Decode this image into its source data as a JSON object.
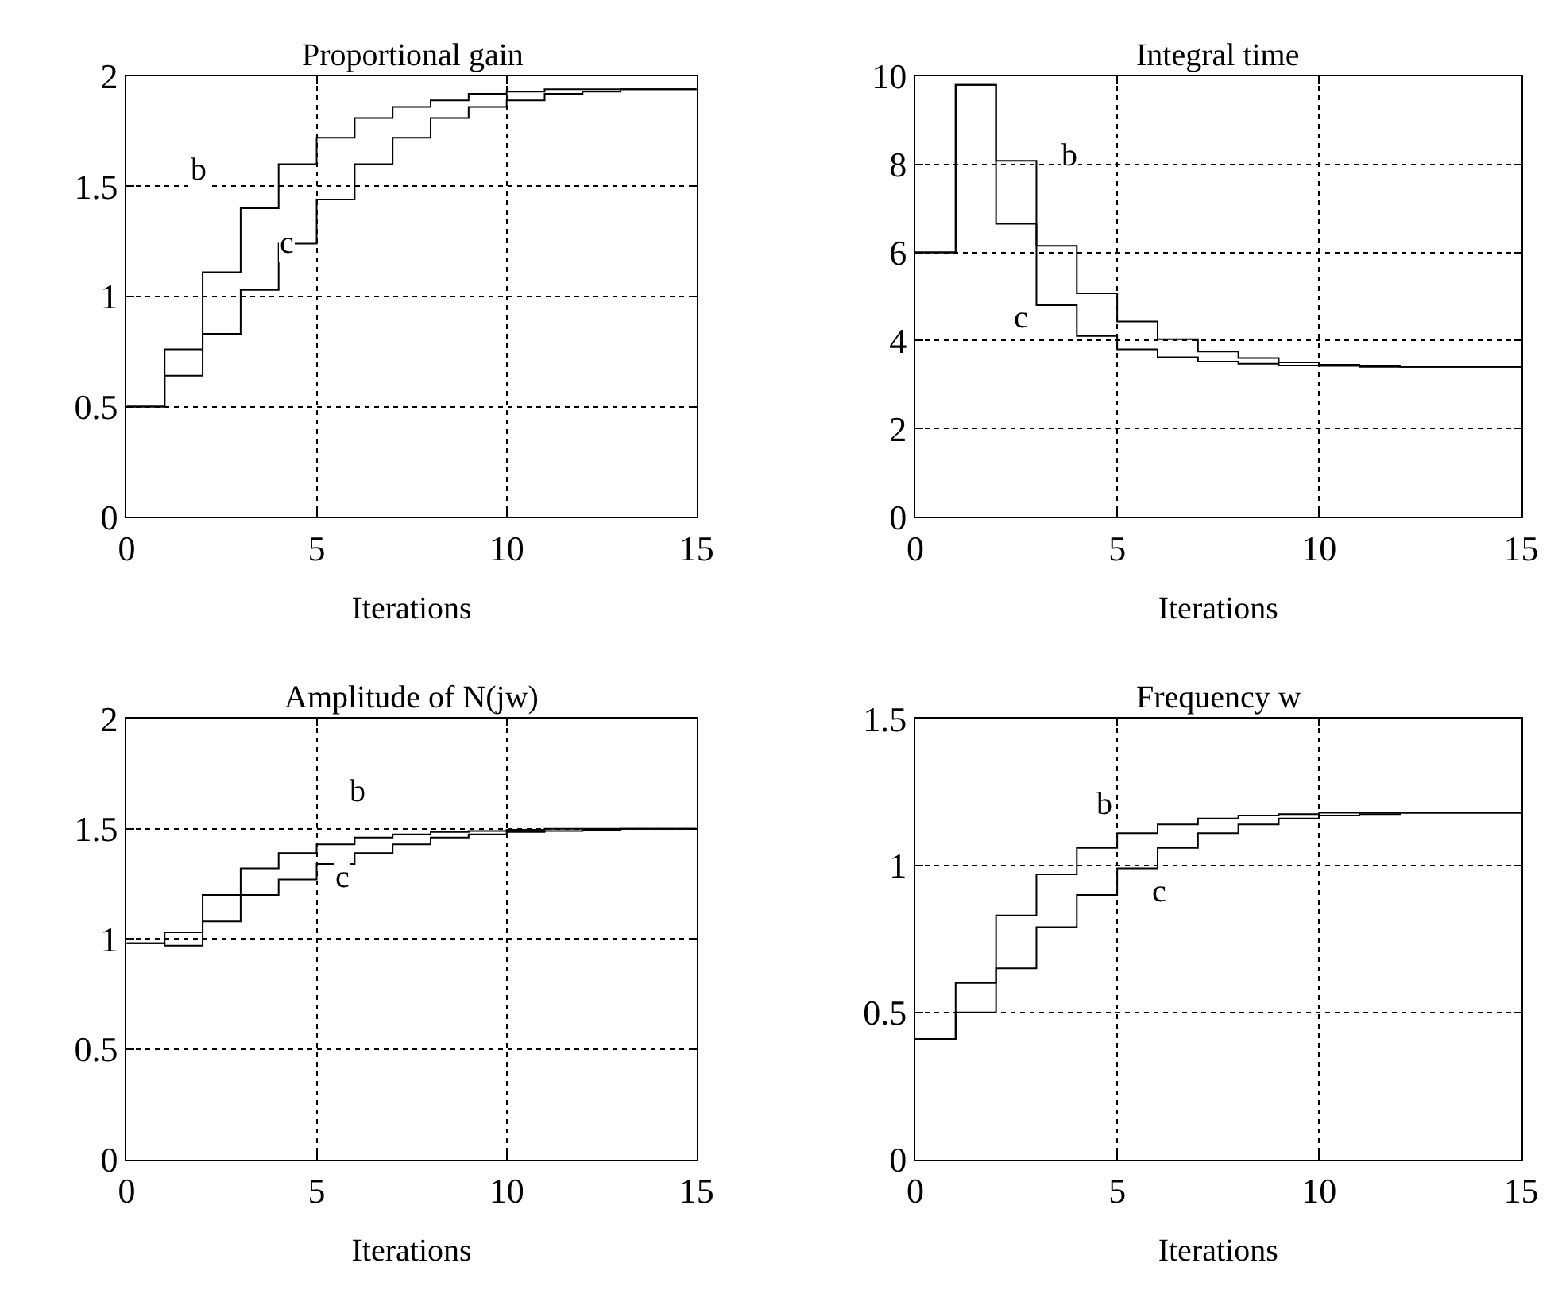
{
  "chart_data": [
    {
      "type": "step",
      "title": "Proportional gain",
      "xlabel": "Iterations",
      "x": [
        0,
        1,
        2,
        3,
        4,
        5,
        6,
        7,
        8,
        9,
        10,
        11,
        12,
        13,
        14,
        15
      ],
      "series": [
        {
          "name": "b",
          "color": "#000000",
          "values": [
            0.5,
            0.76,
            1.11,
            1.4,
            1.6,
            1.72,
            1.81,
            1.86,
            1.89,
            1.92,
            1.93,
            1.94,
            1.94,
            1.94,
            1.94,
            1.94
          ]
        },
        {
          "name": "c",
          "color": "#000000",
          "values": [
            0.5,
            0.64,
            0.83,
            1.03,
            1.24,
            1.44,
            1.6,
            1.72,
            1.81,
            1.86,
            1.89,
            1.92,
            1.93,
            1.94,
            1.94,
            1.94
          ]
        }
      ],
      "xlim": [
        0,
        15
      ],
      "ylim": [
        0,
        2
      ],
      "xticks": [
        0,
        5,
        10,
        15
      ],
      "yticks": [
        0,
        0.5,
        1,
        1.5,
        2
      ],
      "grid": true,
      "legend": false
    },
    {
      "type": "step",
      "title": "Integral time",
      "xlabel": "Iterations",
      "x": [
        0,
        1,
        2,
        3,
        4,
        5,
        6,
        7,
        8,
        9,
        10,
        11,
        12,
        13,
        14,
        15
      ],
      "series": [
        {
          "name": "b",
          "color": "#000000",
          "values": [
            6.0,
            9.8,
            8.08,
            6.15,
            5.07,
            4.43,
            4.03,
            3.75,
            3.6,
            3.5,
            3.45,
            3.43,
            3.4,
            3.4,
            3.4,
            3.4
          ]
        },
        {
          "name": "c",
          "color": "#000000",
          "values": [
            6.0,
            9.8,
            6.65,
            4.8,
            4.1,
            3.8,
            3.62,
            3.52,
            3.47,
            3.43,
            3.42,
            3.4,
            3.4,
            3.4,
            3.4,
            3.4
          ]
        }
      ],
      "xlim": [
        0,
        15
      ],
      "ylim": [
        0,
        10
      ],
      "xticks": [
        0,
        5,
        10,
        15
      ],
      "yticks": [
        0,
        2,
        4,
        6,
        8,
        10
      ],
      "grid": true,
      "legend": false
    },
    {
      "type": "step",
      "title": "Amplitude of N(jw)",
      "xlabel": "Iterations",
      "x": [
        0,
        1,
        2,
        3,
        4,
        5,
        6,
        7,
        8,
        9,
        10,
        11,
        12,
        13,
        14,
        15
      ],
      "series": [
        {
          "name": "b",
          "color": "#000000",
          "values": [
            0.98,
            1.03,
            1.2,
            1.32,
            1.39,
            1.43,
            1.46,
            1.475,
            1.485,
            1.49,
            1.495,
            1.5,
            1.5,
            1.5,
            1.5,
            1.5
          ]
        },
        {
          "name": "c",
          "color": "#000000",
          "values": [
            0.98,
            0.97,
            1.08,
            1.2,
            1.27,
            1.34,
            1.39,
            1.43,
            1.46,
            1.475,
            1.485,
            1.49,
            1.495,
            1.5,
            1.5,
            1.5
          ]
        }
      ],
      "xlim": [
        0,
        15
      ],
      "ylim": [
        0,
        2
      ],
      "xticks": [
        0,
        5,
        10,
        15
      ],
      "yticks": [
        0,
        0.5,
        1,
        1.5,
        2
      ],
      "grid": true,
      "legend": false
    },
    {
      "type": "step",
      "title": "Frequency w",
      "xlabel": "Iterations",
      "x": [
        0,
        1,
        2,
        3,
        4,
        5,
        6,
        7,
        8,
        9,
        10,
        11,
        12,
        13,
        14,
        15
      ],
      "series": [
        {
          "name": "b",
          "color": "#000000",
          "values": [
            0.41,
            0.6,
            0.83,
            0.97,
            1.06,
            1.11,
            1.14,
            1.16,
            1.17,
            1.175,
            1.18,
            1.18,
            1.18,
            1.18,
            1.18,
            1.18
          ]
        },
        {
          "name": "c",
          "color": "#000000",
          "values": [
            0.41,
            0.5,
            0.65,
            0.79,
            0.9,
            0.99,
            1.06,
            1.11,
            1.14,
            1.16,
            1.17,
            1.175,
            1.18,
            1.18,
            1.18,
            1.18
          ]
        }
      ],
      "xlim": [
        0,
        15
      ],
      "ylim": [
        0,
        1.5
      ],
      "xticks": [
        0,
        5,
        10,
        15
      ],
      "yticks": [
        0,
        0.5,
        1,
        1.5
      ],
      "grid": true,
      "legend": false
    }
  ]
}
